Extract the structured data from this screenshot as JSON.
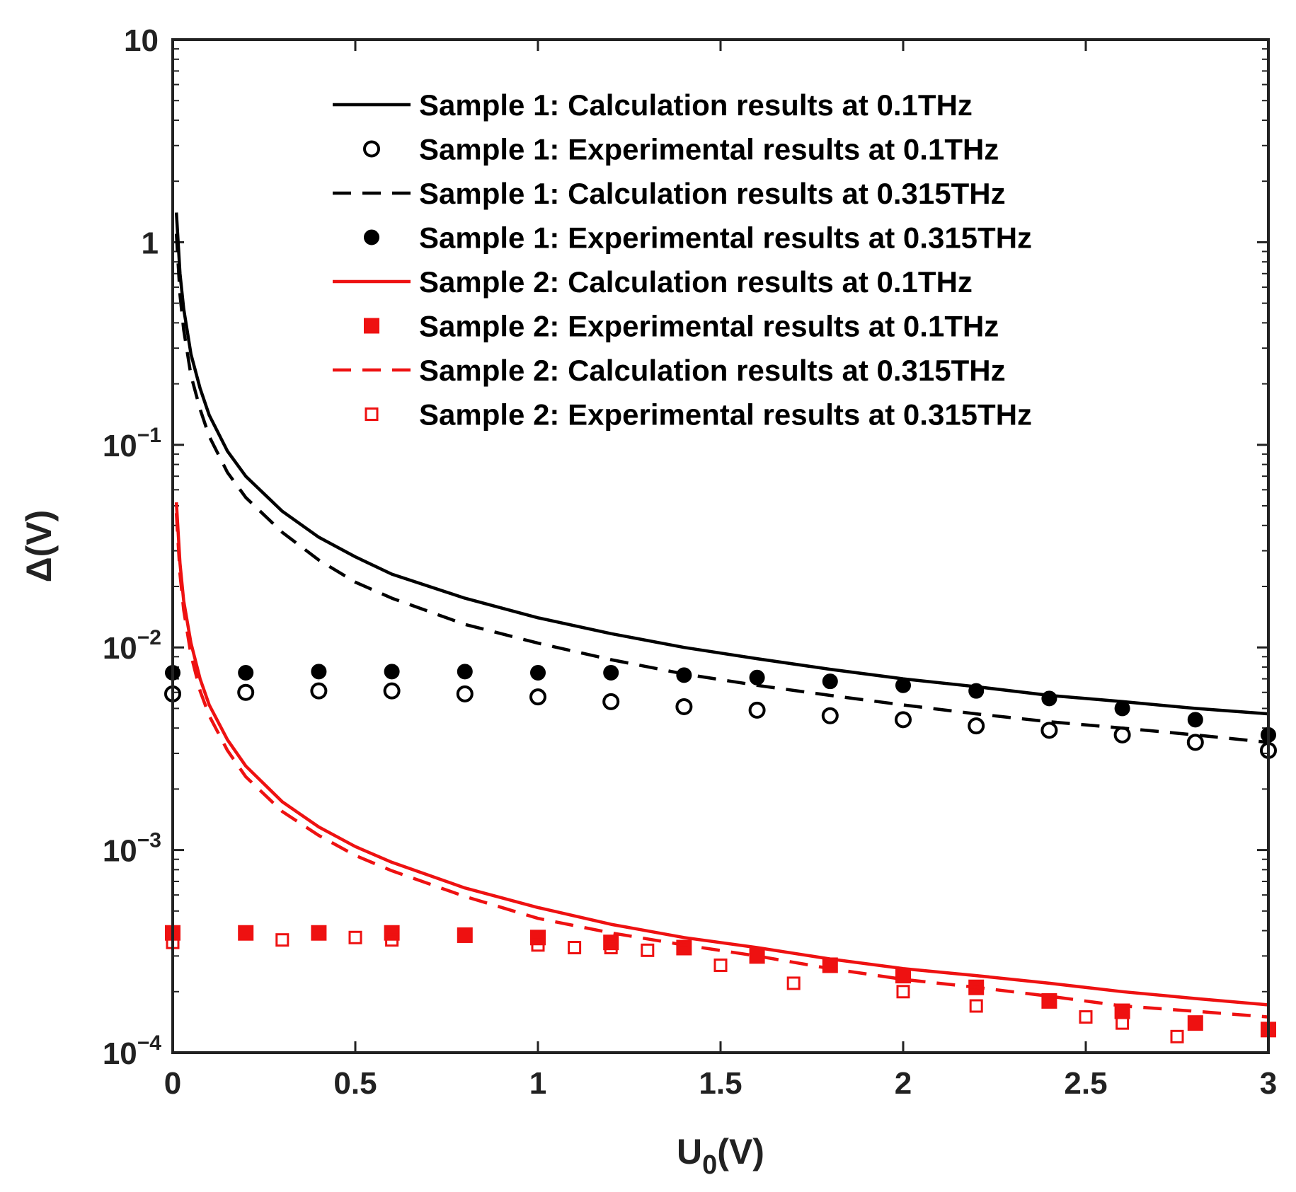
{
  "chart_data": {
    "type": "line",
    "title": "",
    "xlabel": "U",
    "xlabel_sub": "0",
    "xlabel_suffix": "(V)",
    "ylabel": "Δ(V)",
    "xlim": [
      0,
      3
    ],
    "ylim": [
      0.0001,
      10
    ],
    "yscale": "log",
    "xticks": [
      {
        "value": 0,
        "label": "0"
      },
      {
        "value": 0.5,
        "label": "0.5"
      },
      {
        "value": 1,
        "label": "1"
      },
      {
        "value": 1.5,
        "label": "1.5"
      },
      {
        "value": 2,
        "label": "2"
      },
      {
        "value": 2.5,
        "label": "2.5"
      },
      {
        "value": 3,
        "label": "3"
      }
    ],
    "yticks": [
      {
        "value": 10,
        "base": "10",
        "exp": ""
      },
      {
        "value": 1,
        "base": "1",
        "exp": ""
      },
      {
        "value": 0.1,
        "base": "10",
        "exp": "−1"
      },
      {
        "value": 0.01,
        "base": "10",
        "exp": "−2"
      },
      {
        "value": 0.001,
        "base": "10",
        "exp": "−3"
      },
      {
        "value": 0.0001,
        "base": "10",
        "exp": "−4"
      }
    ],
    "legend_position": "top-right",
    "series": [
      {
        "name": "Sample 1: Calculation results at 0.1THz",
        "kind": "line",
        "style": "solid",
        "color": "#000000",
        "x": [
          0.01,
          0.02,
          0.03,
          0.05,
          0.075,
          0.1,
          0.15,
          0.2,
          0.3,
          0.4,
          0.5,
          0.6,
          0.8,
          1.0,
          1.2,
          1.4,
          1.6,
          1.8,
          2.0,
          2.2,
          2.4,
          2.6,
          2.8,
          3.0
        ],
        "y": [
          1.4,
          0.7,
          0.47,
          0.28,
          0.19,
          0.14,
          0.093,
          0.07,
          0.047,
          0.035,
          0.028,
          0.023,
          0.0175,
          0.014,
          0.0117,
          0.01,
          0.0088,
          0.0078,
          0.007,
          0.0064,
          0.0058,
          0.0054,
          0.005,
          0.0047
        ]
      },
      {
        "name": "Sample 1: Experimental results at 0.1THz",
        "kind": "scatter",
        "marker": "open-circle",
        "color": "#000000",
        "x": [
          0,
          0.2,
          0.4,
          0.6,
          0.8,
          1.0,
          1.2,
          1.4,
          1.6,
          1.8,
          2.0,
          2.2,
          2.4,
          2.6,
          2.8,
          3.0
        ],
        "y": [
          0.0059,
          0.006,
          0.0061,
          0.0061,
          0.0059,
          0.0057,
          0.0054,
          0.0051,
          0.0049,
          0.0046,
          0.0044,
          0.0041,
          0.0039,
          0.0037,
          0.0034,
          0.0031
        ]
      },
      {
        "name": "Sample 1: Calculation results at 0.315THz",
        "kind": "line",
        "style": "dashed",
        "color": "#000000",
        "x": [
          0.01,
          0.02,
          0.03,
          0.05,
          0.075,
          0.1,
          0.15,
          0.2,
          0.3,
          0.4,
          0.5,
          0.6,
          0.8,
          1.0,
          1.2,
          1.4,
          1.6,
          1.8,
          2.0,
          2.2,
          2.4,
          2.6,
          2.8,
          3.0
        ],
        "y": [
          1.1,
          0.55,
          0.37,
          0.22,
          0.15,
          0.11,
          0.073,
          0.055,
          0.037,
          0.027,
          0.021,
          0.0175,
          0.013,
          0.0105,
          0.0087,
          0.0074,
          0.0065,
          0.0058,
          0.0052,
          0.0047,
          0.0043,
          0.004,
          0.0037,
          0.0034
        ]
      },
      {
        "name": "Sample 1: Experimental results at 0.315THz",
        "kind": "scatter",
        "marker": "filled-circle",
        "color": "#000000",
        "x": [
          0,
          0.2,
          0.4,
          0.6,
          0.8,
          1.0,
          1.2,
          1.4,
          1.6,
          1.8,
          2.0,
          2.2,
          2.4,
          2.6,
          2.8,
          3.0
        ],
        "y": [
          0.0075,
          0.0075,
          0.0076,
          0.0076,
          0.0076,
          0.0075,
          0.0075,
          0.0073,
          0.0071,
          0.0068,
          0.0065,
          0.0061,
          0.0056,
          0.005,
          0.0044,
          0.0037
        ]
      },
      {
        "name": "Sample 2: Calculation results at 0.1THz",
        "kind": "line",
        "style": "solid",
        "color": "#ee1111",
        "x": [
          0.01,
          0.02,
          0.03,
          0.05,
          0.075,
          0.1,
          0.15,
          0.2,
          0.3,
          0.4,
          0.5,
          0.6,
          0.8,
          1.0,
          1.2,
          1.4,
          1.6,
          1.8,
          2.0,
          2.2,
          2.4,
          2.6,
          2.8,
          3.0
        ],
        "y": [
          0.052,
          0.026,
          0.017,
          0.0105,
          0.007,
          0.0052,
          0.0035,
          0.0026,
          0.00173,
          0.0013,
          0.00104,
          0.00087,
          0.00065,
          0.00052,
          0.00043,
          0.00037,
          0.00033,
          0.00029,
          0.00026,
          0.00024,
          0.00022,
          0.0002,
          0.000185,
          0.000172
        ]
      },
      {
        "name": "Sample 2: Experimental results at 0.1THz",
        "kind": "scatter",
        "marker": "filled-square",
        "color": "#ee1111",
        "x": [
          0,
          0.2,
          0.4,
          0.6,
          0.8,
          1.0,
          1.2,
          1.4,
          1.6,
          1.8,
          2.0,
          2.2,
          2.4,
          2.6,
          2.8,
          3.0
        ],
        "y": [
          0.00039,
          0.00039,
          0.00039,
          0.00039,
          0.00038,
          0.00037,
          0.00035,
          0.00033,
          0.0003,
          0.00027,
          0.00024,
          0.00021,
          0.00018,
          0.00016,
          0.00014,
          0.00013
        ]
      },
      {
        "name": "Sample 2: Calculation results at 0.315THz",
        "kind": "line",
        "style": "dashed",
        "color": "#ee1111",
        "x": [
          0.01,
          0.02,
          0.03,
          0.05,
          0.075,
          0.1,
          0.15,
          0.2,
          0.3,
          0.4,
          0.5,
          0.6,
          0.8,
          1.0,
          1.2,
          1.4,
          1.6,
          1.8,
          2.0,
          2.2,
          2.4,
          2.6,
          2.8,
          3.0
        ],
        "y": [
          0.046,
          0.023,
          0.0153,
          0.0092,
          0.0061,
          0.0046,
          0.0031,
          0.0023,
          0.00155,
          0.00118,
          0.00094,
          0.00079,
          0.00059,
          0.00046,
          0.00039,
          0.00034,
          0.0003,
          0.00026,
          0.00023,
          0.00021,
          0.00019,
          0.00017,
          0.00016,
          0.00015
        ]
      },
      {
        "name": "Sample 2: Experimental results at 0.315THz",
        "kind": "scatter",
        "marker": "open-square",
        "color": "#ee1111",
        "x": [
          0,
          0.3,
          0.5,
          0.6,
          1.0,
          1.1,
          1.2,
          1.3,
          1.5,
          1.7,
          2.0,
          2.2,
          2.5,
          2.6,
          2.75
        ],
        "y": [
          0.00035,
          0.00036,
          0.00037,
          0.00036,
          0.00034,
          0.00033,
          0.00033,
          0.00032,
          0.00027,
          0.00022,
          0.0002,
          0.00017,
          0.00015,
          0.00014,
          0.00012
        ]
      }
    ]
  }
}
